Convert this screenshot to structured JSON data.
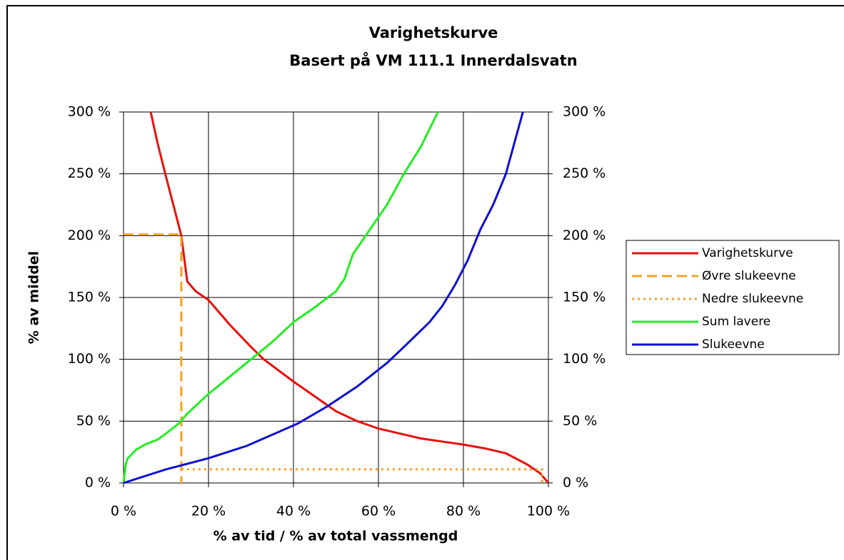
{
  "chart_data": {
    "type": "line",
    "title": "Varighetskurve",
    "subtitle": "Basert på VM 111.1 Innerdalsvatn",
    "x_label": "% av tid / % av total vassmengd",
    "y_label": "% av middel",
    "xlim": [
      0,
      100
    ],
    "xticks": [
      {
        "value": 0,
        "label": "0 %"
      },
      {
        "value": 20,
        "label": "20 %"
      },
      {
        "value": 40,
        "label": "40 %"
      },
      {
        "value": 60,
        "label": "60 %"
      },
      {
        "value": 80,
        "label": "80 %"
      },
      {
        "value": 100,
        "label": "100 %"
      }
    ],
    "ylim": [
      0,
      300
    ],
    "yticks": [
      {
        "value": 0,
        "label": "0 %"
      },
      {
        "value": 50,
        "label": "50 %"
      },
      {
        "value": 100,
        "label": "100 %"
      },
      {
        "value": 150,
        "label": "150 %"
      },
      {
        "value": 200,
        "label": "200 %"
      },
      {
        "value": 250,
        "label": "250 %"
      },
      {
        "value": 300,
        "label": "300 %"
      }
    ],
    "y2lim": [
      0,
      300
    ],
    "y2ticks": [
      {
        "value": 0,
        "label": "0 %"
      },
      {
        "value": 50,
        "label": "50 %"
      },
      {
        "value": 100,
        "label": "100 %"
      },
      {
        "value": 150,
        "label": "150 %"
      },
      {
        "value": 200,
        "label": "200 %"
      },
      {
        "value": 250,
        "label": "250 %"
      },
      {
        "value": 300,
        "label": "300 %"
      }
    ],
    "grid": true,
    "legend": "right",
    "series": [
      {
        "name": "Varighetskurve",
        "color": "#e8100c",
        "dash": "solid",
        "x": [
          6.4,
          8,
          9.9,
          12.1,
          13.6,
          15,
          17,
          20,
          25,
          30,
          33,
          40,
          45,
          50,
          55,
          60,
          65,
          70,
          80,
          85,
          90,
          95,
          98,
          100
        ],
        "values": [
          300,
          275,
          249,
          220,
          200,
          163,
          155,
          148,
          128,
          110,
          100,
          82,
          70,
          58,
          50,
          44,
          40,
          36,
          31,
          28,
          24,
          15,
          8,
          0
        ]
      },
      {
        "name": "Øvre slukeevne",
        "color": "#f5a020",
        "dash": "dashed",
        "x": [
          0,
          13.6,
          13.6
        ],
        "values": [
          201,
          201,
          0
        ]
      },
      {
        "name": "Nedre slukeevne",
        "color": "#f5a020",
        "dash": "dotted",
        "x": [
          13.6,
          98.5,
          98.5
        ],
        "values": [
          11,
          11,
          0
        ]
      },
      {
        "name": "Sum lavere",
        "color": "#22ee22",
        "dash": "solid",
        "x": [
          0,
          0.5,
          1,
          3,
          5,
          8,
          10,
          13,
          15,
          20,
          25,
          30,
          35,
          40,
          45,
          50,
          52,
          54,
          58,
          62,
          66,
          70,
          74
        ],
        "values": [
          0,
          15,
          20,
          27,
          31,
          35,
          40,
          48,
          56,
          72,
          86,
          100,
          114,
          130,
          142,
          155,
          165,
          185,
          205,
          225,
          250,
          272,
          300
        ]
      },
      {
        "name": "Slukeevne",
        "color": "#1010d0",
        "dash": "solid",
        "x": [
          0,
          10,
          20,
          29,
          35,
          41,
          48,
          55,
          62,
          66,
          69,
          72,
          75,
          78,
          81,
          84,
          87,
          90,
          92,
          94
        ],
        "values": [
          0,
          11,
          20,
          30,
          39,
          48,
          62,
          78,
          97,
          110,
          120,
          130,
          143,
          160,
          180,
          205,
          225,
          250,
          275,
          300
        ]
      }
    ]
  }
}
